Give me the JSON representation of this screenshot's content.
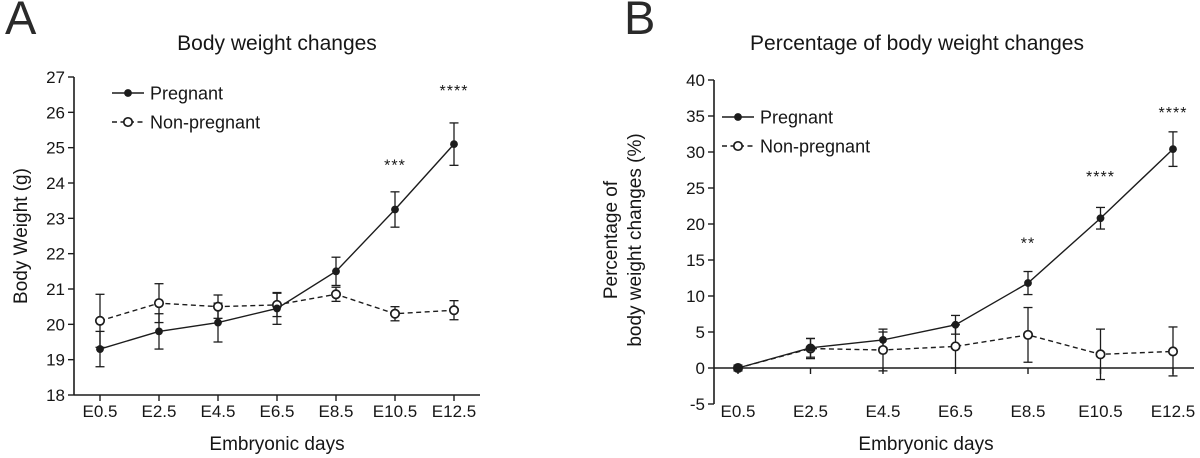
{
  "figure": {
    "panels": [
      {
        "label": "A"
      },
      {
        "label": "B"
      }
    ]
  },
  "style": {
    "ink": "#1c1c1c",
    "text": "#161616",
    "open_marker_fill": "#ffffff"
  },
  "chart_data": [
    {
      "type": "line",
      "panel": "A",
      "title": "Body weight changes",
      "xlabel": "Embryonic days",
      "ylabel_lines": [
        "Body Weight (g)"
      ],
      "categories": [
        "E0.5",
        "E2.5",
        "E4.5",
        "E6.5",
        "E8.5",
        "E10.5",
        "E12.5"
      ],
      "ylim": [
        18,
        27
      ],
      "ytick_step": 1,
      "baseline_value": 18,
      "grid": false,
      "legend_position": "inside-top-left",
      "series": [
        {
          "name": "Pregnant",
          "marker": "filled-circle",
          "line_style": "solid",
          "values": [
            19.3,
            19.8,
            20.05,
            20.45,
            21.5,
            23.25,
            25.1
          ],
          "errors": [
            0.5,
            0.5,
            0.55,
            0.45,
            0.4,
            0.5,
            0.6
          ]
        },
        {
          "name": "Non-pregnant",
          "marker": "open-circle",
          "line_style": "dashed",
          "values": [
            20.1,
            20.6,
            20.5,
            20.55,
            20.85,
            20.3,
            20.4
          ],
          "errors": [
            0.75,
            0.55,
            0.33,
            0.33,
            0.2,
            0.2,
            0.27
          ]
        }
      ],
      "annotations": [
        {
          "text": "***",
          "category": "E10.5",
          "y": 24.5
        },
        {
          "text": "****",
          "category": "E12.5",
          "y": 26.6
        }
      ]
    },
    {
      "type": "line",
      "panel": "B",
      "title": "Percentage of body weight changes",
      "xlabel": "Embryonic days",
      "ylabel_lines": [
        "Percentage of",
        "body weight changes (%)"
      ],
      "categories": [
        "E0.5",
        "E2.5",
        "E4.5",
        "E6.5",
        "E8.5",
        "E10.5",
        "E12.5"
      ],
      "ylim": [
        -5,
        40
      ],
      "ytick_step": 5,
      "baseline_value": 0,
      "grid": false,
      "legend_position": "inside-top-left",
      "series": [
        {
          "name": "Pregnant",
          "marker": "filled-circle",
          "line_style": "solid",
          "values": [
            0,
            2.8,
            3.9,
            6.0,
            11.8,
            20.8,
            30.4
          ],
          "errors": [
            0.4,
            1.3,
            1.1,
            1.3,
            1.6,
            1.5,
            2.4
          ]
        },
        {
          "name": "Non-pregnant",
          "marker": "open-circle",
          "line_style": "dashed",
          "values": [
            0,
            2.7,
            2.5,
            3.0,
            4.6,
            1.9,
            2.3
          ],
          "errors": [
            0.4,
            1.4,
            2.9,
            3.0,
            3.8,
            3.5,
            3.4
          ]
        }
      ],
      "annotations": [
        {
          "text": "**",
          "category": "E8.5",
          "y": 17.3
        },
        {
          "text": "****",
          "category": "E10.5",
          "y": 26.5
        },
        {
          "text": "****",
          "category": "E12.5",
          "y": 35.4
        }
      ]
    }
  ]
}
